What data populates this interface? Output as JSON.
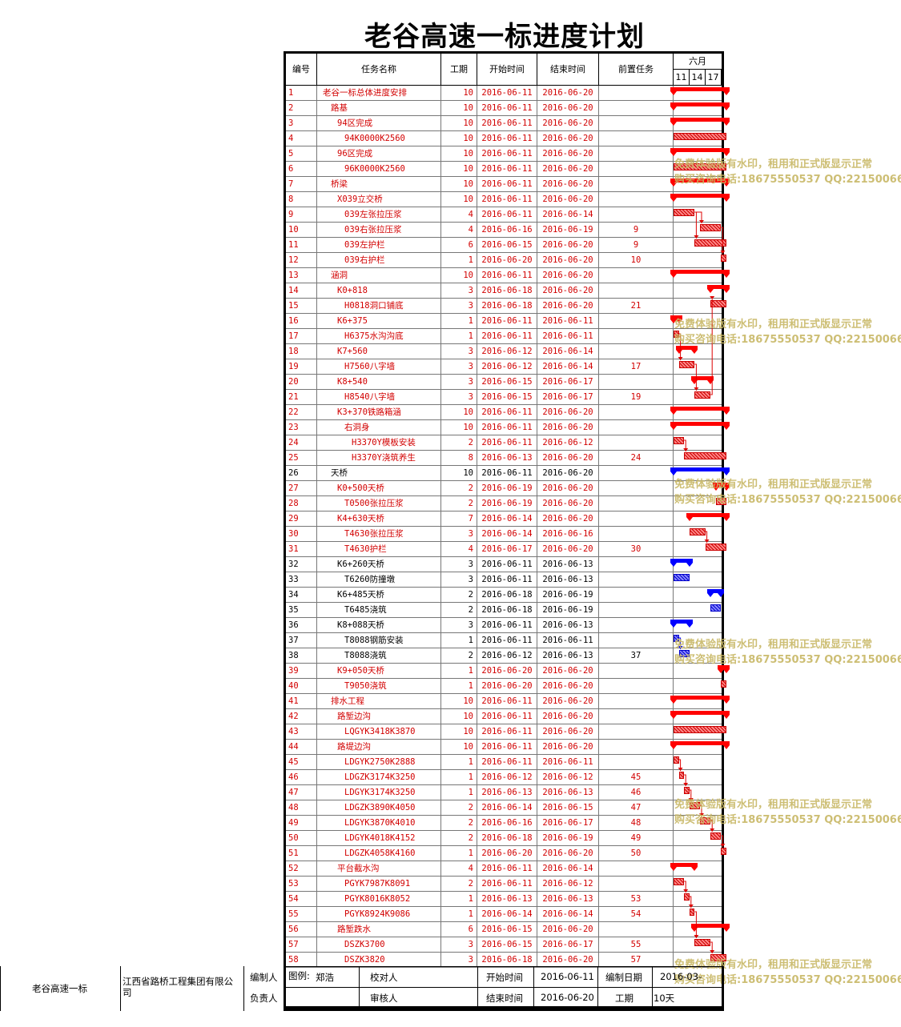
{
  "title": "老谷高速一标进度计划",
  "header": {
    "id": "编号",
    "name": "任务名称",
    "duration": "工期",
    "start": "开始时间",
    "end": "结束时间",
    "pred": "前置任务",
    "month": "六月",
    "days": [
      "11",
      "14",
      "17"
    ]
  },
  "tasks": [
    {
      "id": "1",
      "name": "老谷一标总体进度安排",
      "level": 0,
      "dur": "10",
      "start": "2016-06-11",
      "end": "2016-06-20",
      "pred": "",
      "color": "red",
      "type": "summary"
    },
    {
      "id": "2",
      "name": "路基",
      "level": 1,
      "dur": "10",
      "start": "2016-06-11",
      "end": "2016-06-20",
      "pred": "",
      "color": "red",
      "type": "summary"
    },
    {
      "id": "3",
      "name": "94区完成",
      "level": 2,
      "dur": "10",
      "start": "2016-06-11",
      "end": "2016-06-20",
      "pred": "",
      "color": "red",
      "type": "summary"
    },
    {
      "id": "4",
      "name": "94K0000K2560",
      "level": 3,
      "dur": "10",
      "start": "2016-06-11",
      "end": "2016-06-20",
      "pred": "",
      "color": "red",
      "type": "task"
    },
    {
      "id": "5",
      "name": "96区完成",
      "level": 2,
      "dur": "10",
      "start": "2016-06-11",
      "end": "2016-06-20",
      "pred": "",
      "color": "red",
      "type": "summary"
    },
    {
      "id": "6",
      "name": "96K0000K2560",
      "level": 3,
      "dur": "10",
      "start": "2016-06-11",
      "end": "2016-06-20",
      "pred": "",
      "color": "red",
      "type": "task"
    },
    {
      "id": "7",
      "name": "桥梁",
      "level": 1,
      "dur": "10",
      "start": "2016-06-11",
      "end": "2016-06-20",
      "pred": "",
      "color": "red",
      "type": "summary"
    },
    {
      "id": "8",
      "name": "X039立交桥",
      "level": 2,
      "dur": "10",
      "start": "2016-06-11",
      "end": "2016-06-20",
      "pred": "",
      "color": "red",
      "type": "summary"
    },
    {
      "id": "9",
      "name": "039左张拉压浆",
      "level": 3,
      "dur": "4",
      "start": "2016-06-11",
      "end": "2016-06-14",
      "pred": "",
      "color": "red",
      "type": "task"
    },
    {
      "id": "10",
      "name": "039右张拉压浆",
      "level": 3,
      "dur": "4",
      "start": "2016-06-16",
      "end": "2016-06-19",
      "pred": "9",
      "color": "red",
      "type": "task"
    },
    {
      "id": "11",
      "name": "039左护栏",
      "level": 3,
      "dur": "6",
      "start": "2016-06-15",
      "end": "2016-06-20",
      "pred": "9",
      "color": "red",
      "type": "task"
    },
    {
      "id": "12",
      "name": "039右护栏",
      "level": 3,
      "dur": "1",
      "start": "2016-06-20",
      "end": "2016-06-20",
      "pred": "10",
      "color": "red",
      "type": "task"
    },
    {
      "id": "13",
      "name": "涵洞",
      "level": 1,
      "dur": "10",
      "start": "2016-06-11",
      "end": "2016-06-20",
      "pred": "",
      "color": "red",
      "type": "summary"
    },
    {
      "id": "14",
      "name": "K0+818",
      "level": 2,
      "dur": "3",
      "start": "2016-06-18",
      "end": "2016-06-20",
      "pred": "",
      "color": "red",
      "type": "summary"
    },
    {
      "id": "15",
      "name": "H0818洞口铺底",
      "level": 3,
      "dur": "3",
      "start": "2016-06-18",
      "end": "2016-06-20",
      "pred": "21",
      "color": "red",
      "type": "task"
    },
    {
      "id": "16",
      "name": "K6+375",
      "level": 2,
      "dur": "1",
      "start": "2016-06-11",
      "end": "2016-06-11",
      "pred": "",
      "color": "red",
      "type": "summary"
    },
    {
      "id": "17",
      "name": "H6375水沟沟底",
      "level": 3,
      "dur": "1",
      "start": "2016-06-11",
      "end": "2016-06-11",
      "pred": "",
      "color": "red",
      "type": "task"
    },
    {
      "id": "18",
      "name": "K7+560",
      "level": 2,
      "dur": "3",
      "start": "2016-06-12",
      "end": "2016-06-14",
      "pred": "",
      "color": "red",
      "type": "summary"
    },
    {
      "id": "19",
      "name": "H7560八字墙",
      "level": 3,
      "dur": "3",
      "start": "2016-06-12",
      "end": "2016-06-14",
      "pred": "17",
      "color": "red",
      "type": "task"
    },
    {
      "id": "20",
      "name": "K8+540",
      "level": 2,
      "dur": "3",
      "start": "2016-06-15",
      "end": "2016-06-17",
      "pred": "",
      "color": "red",
      "type": "summary"
    },
    {
      "id": "21",
      "name": "H8540八字墙",
      "level": 3,
      "dur": "3",
      "start": "2016-06-15",
      "end": "2016-06-17",
      "pred": "19",
      "color": "red",
      "type": "task"
    },
    {
      "id": "22",
      "name": "K3+370铁路箱涵",
      "level": 2,
      "dur": "10",
      "start": "2016-06-11",
      "end": "2016-06-20",
      "pred": "",
      "color": "red",
      "type": "summary"
    },
    {
      "id": "23",
      "name": "右洞身",
      "level": 3,
      "dur": "10",
      "start": "2016-06-11",
      "end": "2016-06-20",
      "pred": "",
      "color": "red",
      "type": "summary"
    },
    {
      "id": "24",
      "name": "H3370Y模板安装",
      "level": 4,
      "dur": "2",
      "start": "2016-06-11",
      "end": "2016-06-12",
      "pred": "",
      "color": "red",
      "type": "task"
    },
    {
      "id": "25",
      "name": "H3370Y浇筑养生",
      "level": 4,
      "dur": "8",
      "start": "2016-06-13",
      "end": "2016-06-20",
      "pred": "24",
      "color": "red",
      "type": "task"
    },
    {
      "id": "26",
      "name": "天桥",
      "level": 1,
      "dur": "10",
      "start": "2016-06-11",
      "end": "2016-06-20",
      "pred": "",
      "color": "black",
      "type": "summary"
    },
    {
      "id": "27",
      "name": "K0+500天桥",
      "level": 2,
      "dur": "2",
      "start": "2016-06-19",
      "end": "2016-06-20",
      "pred": "",
      "color": "red",
      "type": "summary"
    },
    {
      "id": "28",
      "name": "T0500张拉压浆",
      "level": 3,
      "dur": "2",
      "start": "2016-06-19",
      "end": "2016-06-20",
      "pred": "",
      "color": "red",
      "type": "task"
    },
    {
      "id": "29",
      "name": "K4+630天桥",
      "level": 2,
      "dur": "7",
      "start": "2016-06-14",
      "end": "2016-06-20",
      "pred": "",
      "color": "red",
      "type": "summary"
    },
    {
      "id": "30",
      "name": "T4630张拉压浆",
      "level": 3,
      "dur": "3",
      "start": "2016-06-14",
      "end": "2016-06-16",
      "pred": "",
      "color": "red",
      "type": "task"
    },
    {
      "id": "31",
      "name": "T4630护栏",
      "level": 3,
      "dur": "4",
      "start": "2016-06-17",
      "end": "2016-06-20",
      "pred": "30",
      "color": "red",
      "type": "task"
    },
    {
      "id": "32",
      "name": "K6+260天桥",
      "level": 2,
      "dur": "3",
      "start": "2016-06-11",
      "end": "2016-06-13",
      "pred": "",
      "color": "black",
      "type": "summary"
    },
    {
      "id": "33",
      "name": "T6260防撞墩",
      "level": 3,
      "dur": "3",
      "start": "2016-06-11",
      "end": "2016-06-13",
      "pred": "",
      "color": "black",
      "type": "task"
    },
    {
      "id": "34",
      "name": "K6+485天桥",
      "level": 2,
      "dur": "2",
      "start": "2016-06-18",
      "end": "2016-06-19",
      "pred": "",
      "color": "black",
      "type": "summary"
    },
    {
      "id": "35",
      "name": "T6485浇筑",
      "level": 3,
      "dur": "2",
      "start": "2016-06-18",
      "end": "2016-06-19",
      "pred": "",
      "color": "black",
      "type": "task"
    },
    {
      "id": "36",
      "name": "K8+088天桥",
      "level": 2,
      "dur": "3",
      "start": "2016-06-11",
      "end": "2016-06-13",
      "pred": "",
      "color": "black",
      "type": "summary"
    },
    {
      "id": "37",
      "name": "T8088钢筋安装",
      "level": 3,
      "dur": "1",
      "start": "2016-06-11",
      "end": "2016-06-11",
      "pred": "",
      "color": "black",
      "type": "task"
    },
    {
      "id": "38",
      "name": "T8088浇筑",
      "level": 3,
      "dur": "2",
      "start": "2016-06-12",
      "end": "2016-06-13",
      "pred": "37",
      "color": "black",
      "type": "task"
    },
    {
      "id": "39",
      "name": "K9+050天桥",
      "level": 2,
      "dur": "1",
      "start": "2016-06-20",
      "end": "2016-06-20",
      "pred": "",
      "color": "red",
      "type": "summary"
    },
    {
      "id": "40",
      "name": "T9050浇筑",
      "level": 3,
      "dur": "1",
      "start": "2016-06-20",
      "end": "2016-06-20",
      "pred": "",
      "color": "red",
      "type": "task"
    },
    {
      "id": "41",
      "name": "排水工程",
      "level": 1,
      "dur": "10",
      "start": "2016-06-11",
      "end": "2016-06-20",
      "pred": "",
      "color": "red",
      "type": "summary"
    },
    {
      "id": "42",
      "name": "路堑边沟",
      "level": 2,
      "dur": "10",
      "start": "2016-06-11",
      "end": "2016-06-20",
      "pred": "",
      "color": "red",
      "type": "summary"
    },
    {
      "id": "43",
      "name": "LQGYK3418K3870",
      "level": 3,
      "dur": "10",
      "start": "2016-06-11",
      "end": "2016-06-20",
      "pred": "",
      "color": "red",
      "type": "task"
    },
    {
      "id": "44",
      "name": "路堤边沟",
      "level": 2,
      "dur": "10",
      "start": "2016-06-11",
      "end": "2016-06-20",
      "pred": "",
      "color": "red",
      "type": "summary"
    },
    {
      "id": "45",
      "name": "LDGYK2750K2888",
      "level": 3,
      "dur": "1",
      "start": "2016-06-11",
      "end": "2016-06-11",
      "pred": "",
      "color": "red",
      "type": "task"
    },
    {
      "id": "46",
      "name": "LDGZK3174K3250",
      "level": 3,
      "dur": "1",
      "start": "2016-06-12",
      "end": "2016-06-12",
      "pred": "45",
      "color": "red",
      "type": "task"
    },
    {
      "id": "47",
      "name": "LDGYK3174K3250",
      "level": 3,
      "dur": "1",
      "start": "2016-06-13",
      "end": "2016-06-13",
      "pred": "46",
      "color": "red",
      "type": "task"
    },
    {
      "id": "48",
      "name": "LDGZK3890K4050",
      "level": 3,
      "dur": "2",
      "start": "2016-06-14",
      "end": "2016-06-15",
      "pred": "47",
      "color": "red",
      "type": "task"
    },
    {
      "id": "49",
      "name": "LDGYK3870K4010",
      "level": 3,
      "dur": "2",
      "start": "2016-06-16",
      "end": "2016-06-17",
      "pred": "48",
      "color": "red",
      "type": "task"
    },
    {
      "id": "50",
      "name": "LDGYK4018K4152",
      "level": 3,
      "dur": "2",
      "start": "2016-06-18",
      "end": "2016-06-19",
      "pred": "49",
      "color": "red",
      "type": "task"
    },
    {
      "id": "51",
      "name": "LDGZK4058K4160",
      "level": 3,
      "dur": "1",
      "start": "2016-06-20",
      "end": "2016-06-20",
      "pred": "50",
      "color": "red",
      "type": "task"
    },
    {
      "id": "52",
      "name": "平台截水沟",
      "level": 2,
      "dur": "4",
      "start": "2016-06-11",
      "end": "2016-06-14",
      "pred": "",
      "color": "red",
      "type": "summary"
    },
    {
      "id": "53",
      "name": "PGYK7987K8091",
      "level": 3,
      "dur": "2",
      "start": "2016-06-11",
      "end": "2016-06-12",
      "pred": "",
      "color": "red",
      "type": "task"
    },
    {
      "id": "54",
      "name": "PGYK8016K8052",
      "level": 3,
      "dur": "1",
      "start": "2016-06-13",
      "end": "2016-06-13",
      "pred": "53",
      "color": "red",
      "type": "task"
    },
    {
      "id": "55",
      "name": "PGYK8924K9086",
      "level": 3,
      "dur": "1",
      "start": "2016-06-14",
      "end": "2016-06-14",
      "pred": "54",
      "color": "red",
      "type": "task"
    },
    {
      "id": "56",
      "name": "路堑跌水",
      "level": 2,
      "dur": "6",
      "start": "2016-06-15",
      "end": "2016-06-20",
      "pred": "",
      "color": "red",
      "type": "summary"
    },
    {
      "id": "57",
      "name": "DSZK3700",
      "level": 3,
      "dur": "3",
      "start": "2016-06-15",
      "end": "2016-06-17",
      "pred": "55",
      "color": "red",
      "type": "task"
    },
    {
      "id": "58",
      "name": "DSZK3820",
      "level": 3,
      "dur": "3",
      "start": "2016-06-18",
      "end": "2016-06-20",
      "pred": "57",
      "color": "red",
      "type": "task"
    }
  ],
  "watermark": {
    "line1": "免费体验版有水印，租用和正式版显示正常",
    "line2": "购买咨询电话:18675550537 QQ:22150066"
  },
  "footer": {
    "project": "老谷高速一标",
    "company": "江西省路桥工程集团有限公司",
    "compiler_label": "编制人",
    "responsible_label": "负责人",
    "legend_label": "图例:",
    "legend_value": "郑浩",
    "checker_label": "校对人",
    "reviewer_label": "审核人",
    "start_label": "开始时间",
    "start_value": "2016-06-11",
    "end_label": "结束时间",
    "end_value": "2016-06-20",
    "date_label": "编制日期",
    "date_value": "2016-03-",
    "dur_label": "工期",
    "dur_value": "10天"
  }
}
